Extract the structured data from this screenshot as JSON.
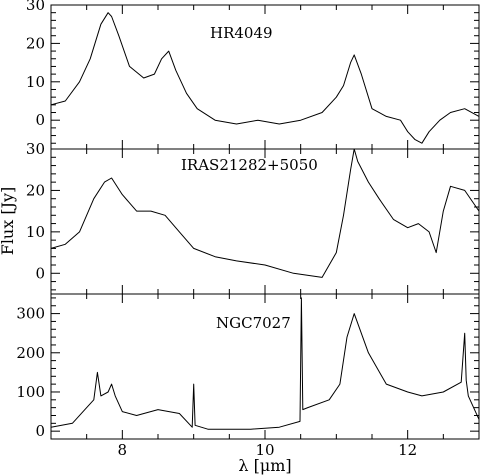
{
  "chart_data": {
    "type": "line",
    "xlabel": "λ [μm]",
    "ylabel": "Flux [Jy]",
    "xlim": [
      7,
      13
    ],
    "x_ticks": [
      8,
      10,
      12
    ],
    "panels": [
      {
        "name": "HR4049",
        "ylim": [
          -7.5,
          30
        ],
        "y_ticks": [
          0,
          10,
          20,
          30
        ],
        "series": {
          "x": [
            7.0,
            7.2,
            7.4,
            7.55,
            7.7,
            7.8,
            7.85,
            7.95,
            8.1,
            8.3,
            8.45,
            8.55,
            8.65,
            8.75,
            8.9,
            9.05,
            9.3,
            9.6,
            9.9,
            10.2,
            10.5,
            10.8,
            11.0,
            11.1,
            11.2,
            11.25,
            11.35,
            11.5,
            11.7,
            11.9,
            12.0,
            12.1,
            12.2,
            12.3,
            12.45,
            12.6,
            12.8,
            13.0
          ],
          "y": [
            4,
            5,
            10,
            16,
            25,
            28,
            27,
            22,
            14,
            11,
            12,
            16,
            18,
            13,
            7,
            3,
            0,
            -1,
            0,
            -1,
            0,
            2,
            6,
            9,
            15,
            17,
            12,
            3,
            1,
            0,
            -3,
            -5,
            -6,
            -3,
            0,
            2,
            3,
            1
          ]
        }
      },
      {
        "name": "IRAS21282+5050",
        "ylim": [
          -5,
          30
        ],
        "y_ticks": [
          0,
          10,
          20,
          30
        ],
        "series": {
          "x": [
            7.0,
            7.2,
            7.4,
            7.6,
            7.75,
            7.85,
            8.0,
            8.2,
            8.4,
            8.6,
            8.8,
            9.0,
            9.3,
            9.6,
            10.0,
            10.4,
            10.8,
            11.0,
            11.1,
            11.2,
            11.25,
            11.3,
            11.45,
            11.6,
            11.8,
            12.0,
            12.15,
            12.3,
            12.4,
            12.5,
            12.6,
            12.8,
            13.0
          ],
          "y": [
            6,
            7,
            10,
            18,
            22,
            23,
            19,
            15,
            15,
            14,
            10,
            6,
            4,
            3,
            2,
            0,
            -1,
            5,
            14,
            25,
            30,
            27,
            22,
            18,
            13,
            11,
            12,
            10,
            5,
            15,
            21,
            20,
            15
          ]
        }
      },
      {
        "name": "NGC7027",
        "ylim": [
          -20,
          350
        ],
        "y_ticks": [
          0,
          100,
          200,
          300
        ],
        "series": {
          "x": [
            7.0,
            7.3,
            7.5,
            7.6,
            7.65,
            7.7,
            7.8,
            7.85,
            7.9,
            8.0,
            8.2,
            8.5,
            8.8,
            8.98,
            9.0,
            9.02,
            9.2,
            9.5,
            9.8,
            10.2,
            10.49,
            10.51,
            10.53,
            10.6,
            10.9,
            11.05,
            11.15,
            11.25,
            11.45,
            11.7,
            12.0,
            12.2,
            12.5,
            12.75,
            12.8,
            12.82,
            12.85,
            13.0
          ],
          "y": [
            10,
            20,
            60,
            80,
            150,
            90,
            100,
            120,
            90,
            50,
            40,
            55,
            45,
            10,
            120,
            15,
            5,
            5,
            5,
            10,
            25,
            340,
            55,
            60,
            80,
            120,
            240,
            300,
            200,
            120,
            100,
            90,
            100,
            125,
            250,
            130,
            90,
            30
          ]
        }
      }
    ]
  }
}
